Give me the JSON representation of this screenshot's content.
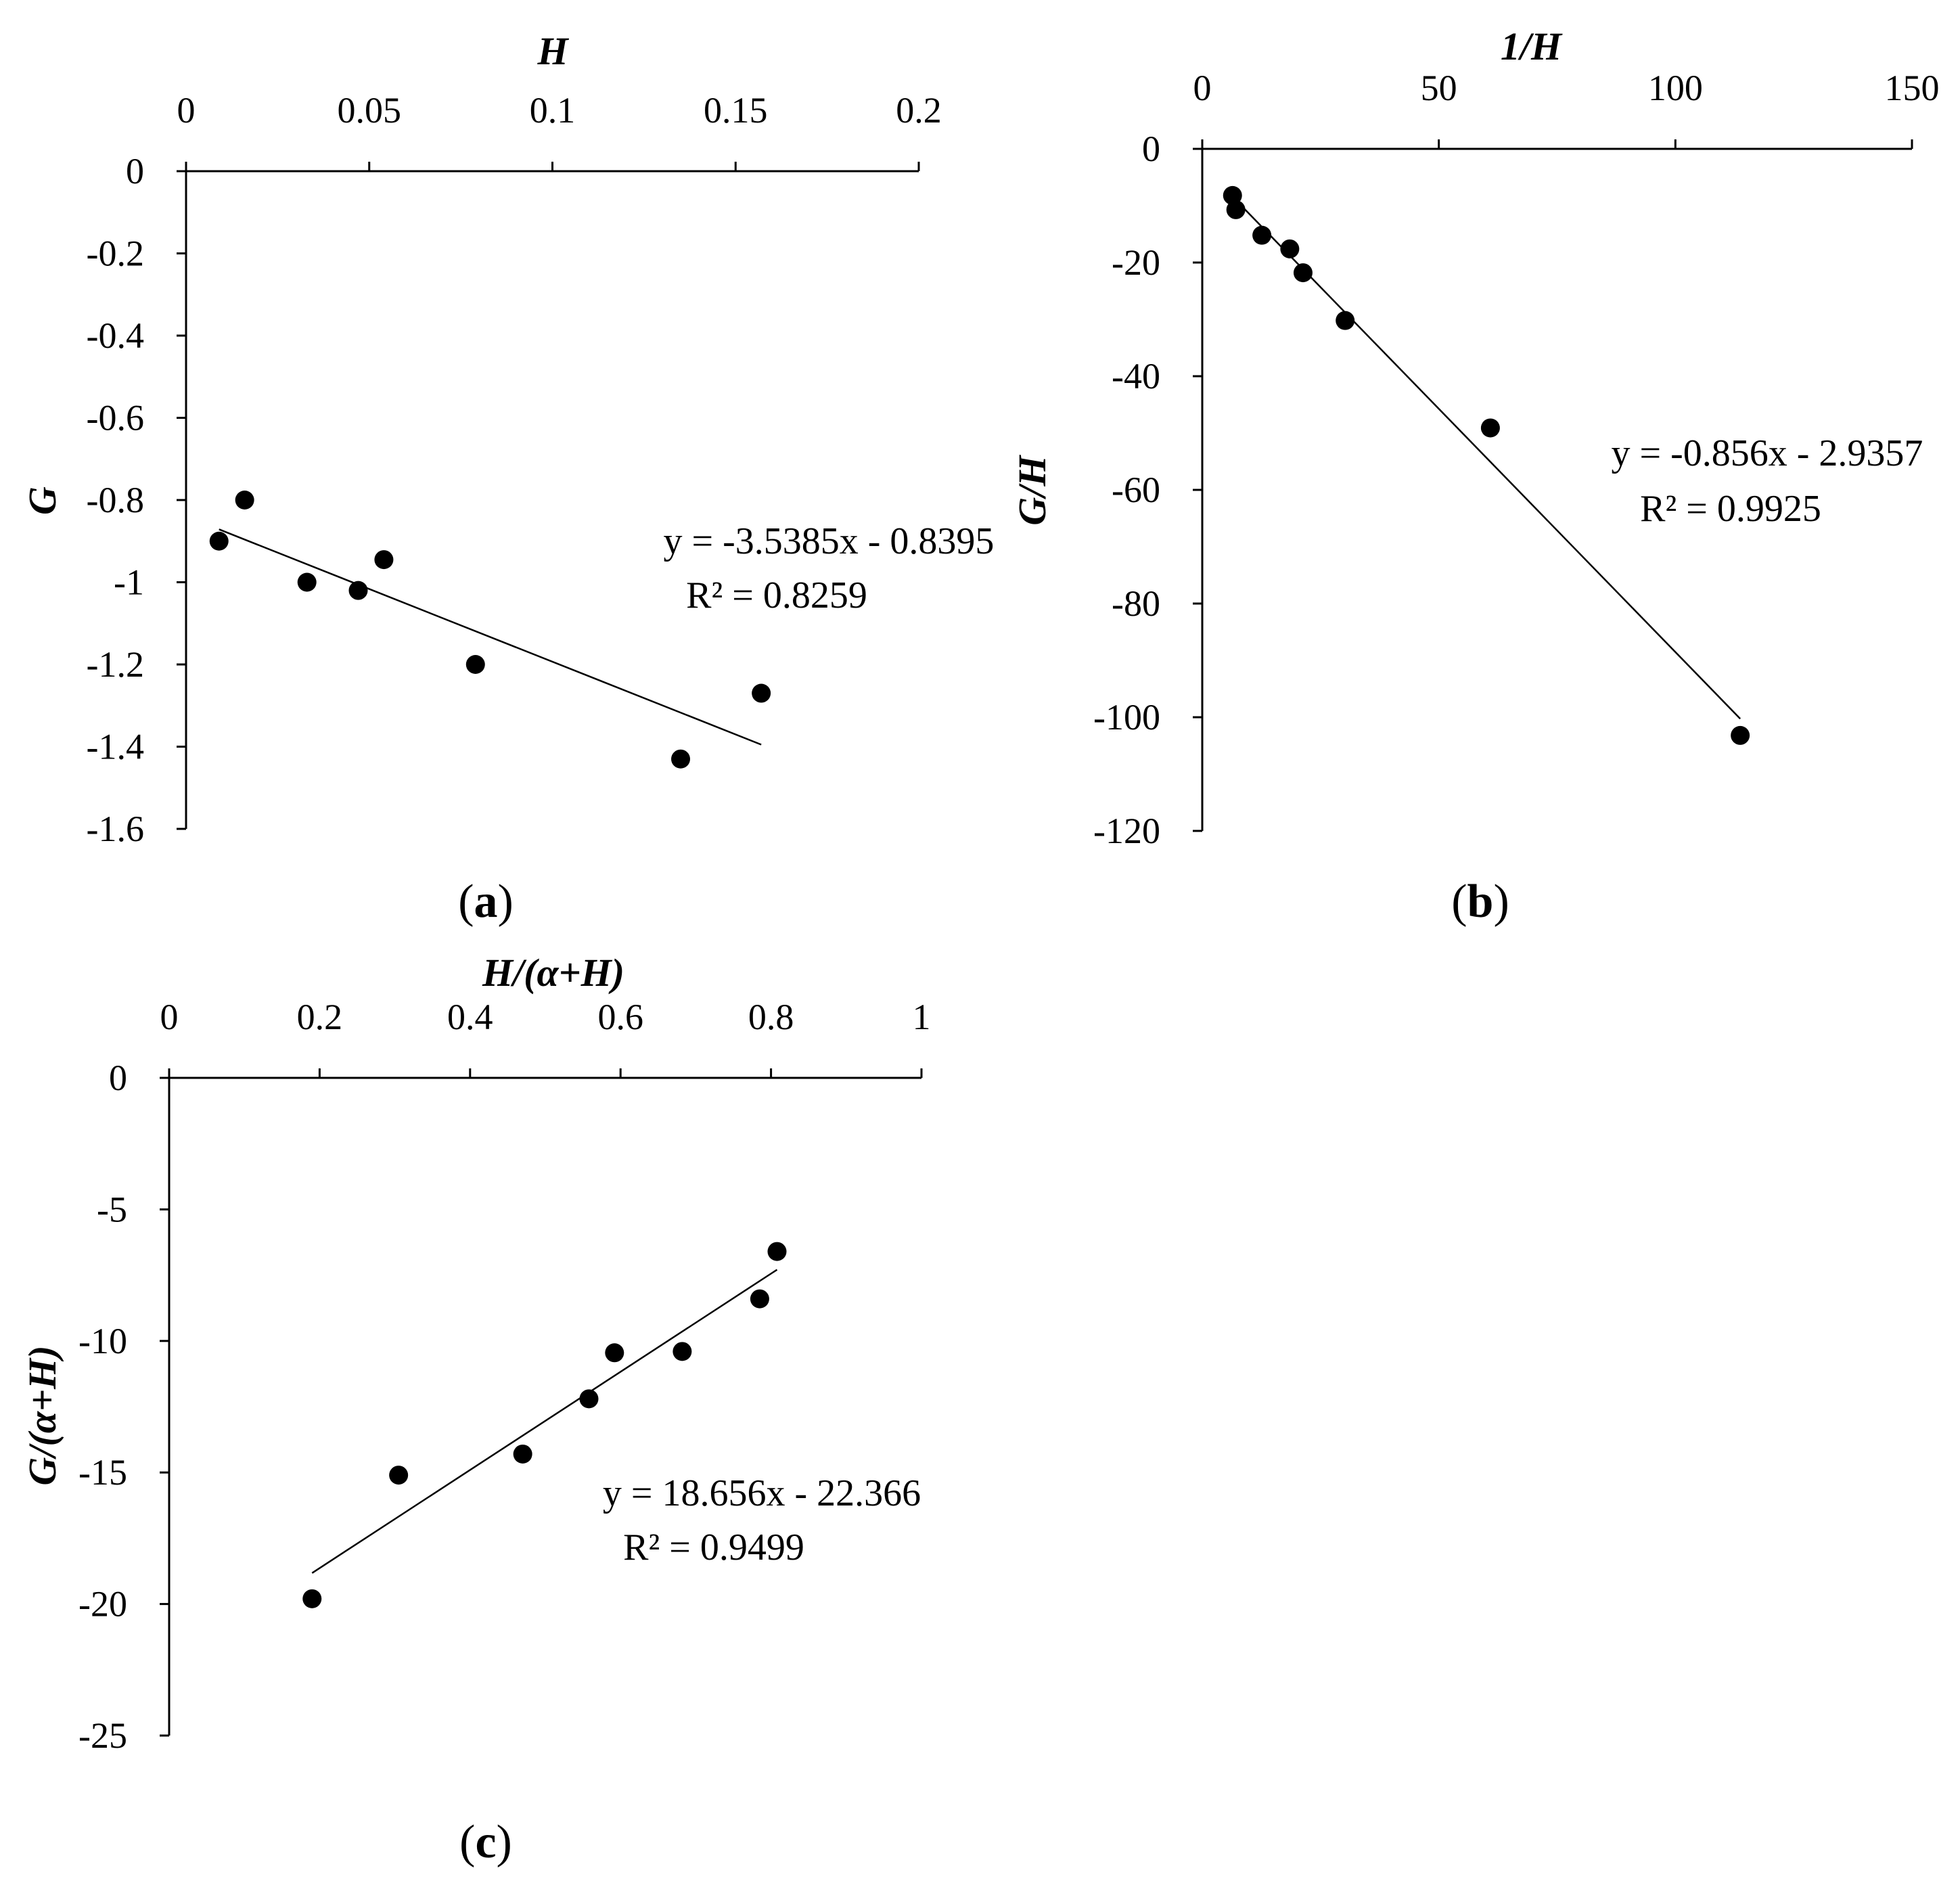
{
  "chart_data": [
    {
      "type": "scatter",
      "panel_label": "a",
      "xlabel": "H",
      "ylabel": "G",
      "xlim": [
        0,
        0.2
      ],
      "ylim": [
        -1.6,
        0
      ],
      "x_ticks": [
        "0",
        "0.05",
        "0.1",
        "0.15",
        "0.2"
      ],
      "y_ticks": [
        "0",
        "-0.2",
        "-0.4",
        "-0.6",
        "-0.8",
        "-1",
        "-1.2",
        "-1.4",
        "-1.6"
      ],
      "x_axis_position": "top",
      "grid": false,
      "points": [
        {
          "x": 0.009,
          "y": -0.9
        },
        {
          "x": 0.016,
          "y": -0.8
        },
        {
          "x": 0.033,
          "y": -1.0
        },
        {
          "x": 0.047,
          "y": -1.02
        },
        {
          "x": 0.054,
          "y": -0.945
        },
        {
          "x": 0.079,
          "y": -1.2
        },
        {
          "x": 0.135,
          "y": -1.43
        },
        {
          "x": 0.157,
          "y": -1.27
        }
      ],
      "trendline": {
        "slope": -3.5385,
        "intercept": -0.8395,
        "x_range": [
          0.009,
          0.157
        ]
      },
      "equation": "y = -3.5385x - 0.8395",
      "r_squared": "R² = 0.8259"
    },
    {
      "type": "scatter",
      "panel_label": "b",
      "xlabel": "1/H",
      "ylabel": "G/H",
      "xlim": [
        0,
        150
      ],
      "ylim": [
        -120,
        0
      ],
      "x_ticks": [
        "0",
        "50",
        "100",
        "150"
      ],
      "y_ticks": [
        "0",
        "-20",
        "-40",
        "-60",
        "-80",
        "-100",
        "-120"
      ],
      "x_axis_position": "top",
      "grid": false,
      "points": [
        {
          "x": 6.4,
          "y": -8.2
        },
        {
          "x": 7.1,
          "y": -10.7
        },
        {
          "x": 12.6,
          "y": -15.2
        },
        {
          "x": 18.5,
          "y": -17.6
        },
        {
          "x": 21.3,
          "y": -21.8
        },
        {
          "x": 30.2,
          "y": -30.2
        },
        {
          "x": 60.9,
          "y": -49.1
        },
        {
          "x": 113.7,
          "y": -103.2
        }
      ],
      "trendline": {
        "slope": -0.856,
        "intercept": -2.9357,
        "x_range": [
          6.4,
          113.7
        ]
      },
      "equation": "y = -0.856x - 2.9357",
      "r_squared": "R² = 0.9925"
    },
    {
      "type": "scatter",
      "panel_label": "c",
      "xlabel": "H/(α+H)",
      "ylabel": "G/(α+H)",
      "xlim": [
        0,
        1
      ],
      "ylim": [
        -25,
        0
      ],
      "x_ticks": [
        "0",
        "0.2",
        "0.4",
        "0.6",
        "0.8",
        "1"
      ],
      "y_ticks": [
        "0",
        "-5",
        "-10",
        "-15",
        "-20",
        "-25"
      ],
      "x_axis_position": "top",
      "grid": false,
      "points": [
        {
          "x": 0.19,
          "y": -19.8
        },
        {
          "x": 0.305,
          "y": -15.1
        },
        {
          "x": 0.47,
          "y": -14.3
        },
        {
          "x": 0.558,
          "y": -12.2
        },
        {
          "x": 0.592,
          "y": -10.45
        },
        {
          "x": 0.682,
          "y": -10.4
        },
        {
          "x": 0.785,
          "y": -8.4
        },
        {
          "x": 0.808,
          "y": -6.6
        }
      ],
      "trendline": {
        "slope": 18.656,
        "intercept": -22.366,
        "x_range": [
          0.19,
          0.808
        ]
      },
      "equation": "y = 18.656x - 22.366",
      "r_squared": "R² = 0.9499"
    }
  ]
}
